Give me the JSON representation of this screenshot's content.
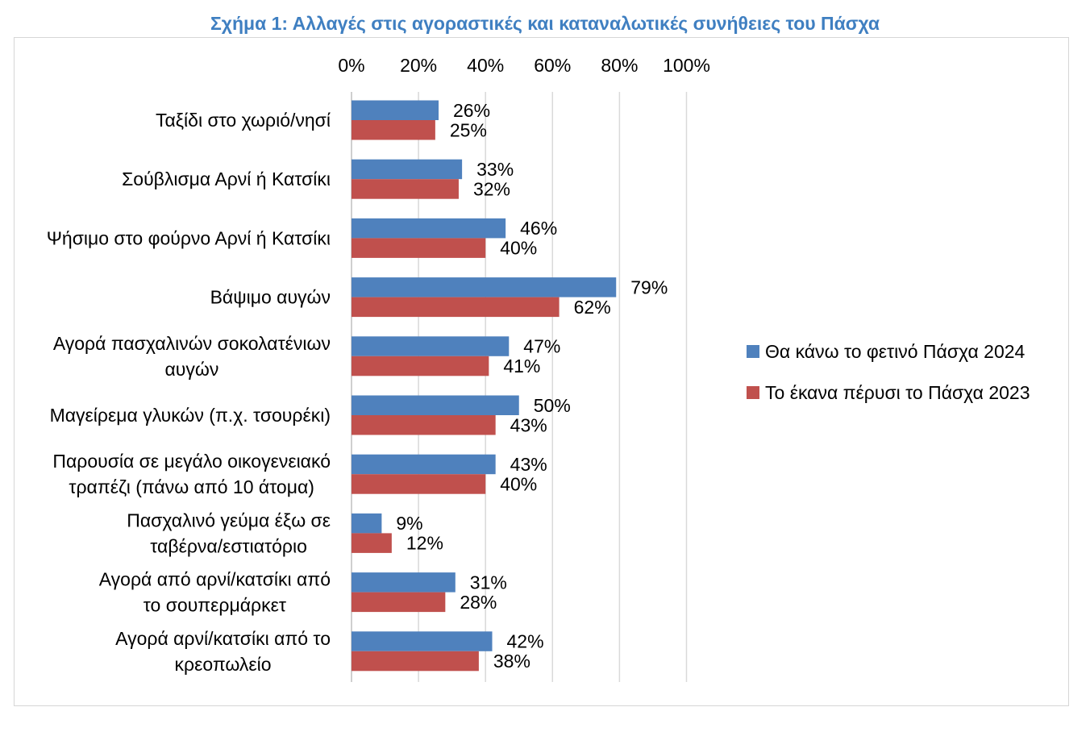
{
  "chart_data": {
    "type": "bar",
    "orientation": "horizontal",
    "title": "Σχήμα 1: Αλλαγές στις αγοραστικές και καταναλωτικές συνήθειες του Πάσχα",
    "xlim": [
      0,
      100
    ],
    "x_ticks": [
      "0%",
      "20%",
      "40%",
      "60%",
      "80%",
      "100%"
    ],
    "x_tick_values": [
      0,
      20,
      40,
      60,
      80,
      100
    ],
    "x_axis_position": "top",
    "grid": true,
    "legend_position": "right",
    "categories": [
      [
        "Ταξίδι στο χωριό/νησί"
      ],
      [
        "Σούβλισμα Αρνί ή Κατσίκι"
      ],
      [
        "Ψήσιμο στο φούρνο Αρνί ή Κατσίκι"
      ],
      [
        "Βάψιμο αυγών"
      ],
      [
        "Αγορά πασχαλινών σοκολατένιων",
        "αυγών"
      ],
      [
        "Μαγείρεμα γλυκών (π.χ. τσουρέκι)"
      ],
      [
        "Παρουσία σε μεγάλο οικογενειακό",
        "τραπέζι (πάνω από 10 άτομα)"
      ],
      [
        "Πασχαλινό γεύμα έξω σε",
        "ταβέρνα/εστιατόριο"
      ],
      [
        "Αγορά από αρνί/κατσίκι από",
        "το σουπερμάρκετ"
      ],
      [
        "Αγορά αρνί/κατσίκι από το",
        "κρεοπωλείο"
      ]
    ],
    "series": [
      {
        "name": "Θα κάνω το φετινό Πάσχα 2024",
        "color": "#4f81bd",
        "values": [
          26,
          33,
          46,
          79,
          47,
          50,
          43,
          9,
          31,
          42
        ],
        "labels": [
          "26%",
          "33%",
          "46%",
          "79%",
          "47%",
          "50%",
          "43%",
          "9%",
          "31%",
          "42%"
        ]
      },
      {
        "name": "Το έκανα πέρυσι το Πάσχα 2023",
        "color": "#c0504d",
        "values": [
          25,
          32,
          40,
          62,
          41,
          43,
          40,
          12,
          28,
          38
        ],
        "labels": [
          "25%",
          "32%",
          "40%",
          "62%",
          "41%",
          "43%",
          "40%",
          "12%",
          "28%",
          "38%"
        ]
      }
    ]
  }
}
